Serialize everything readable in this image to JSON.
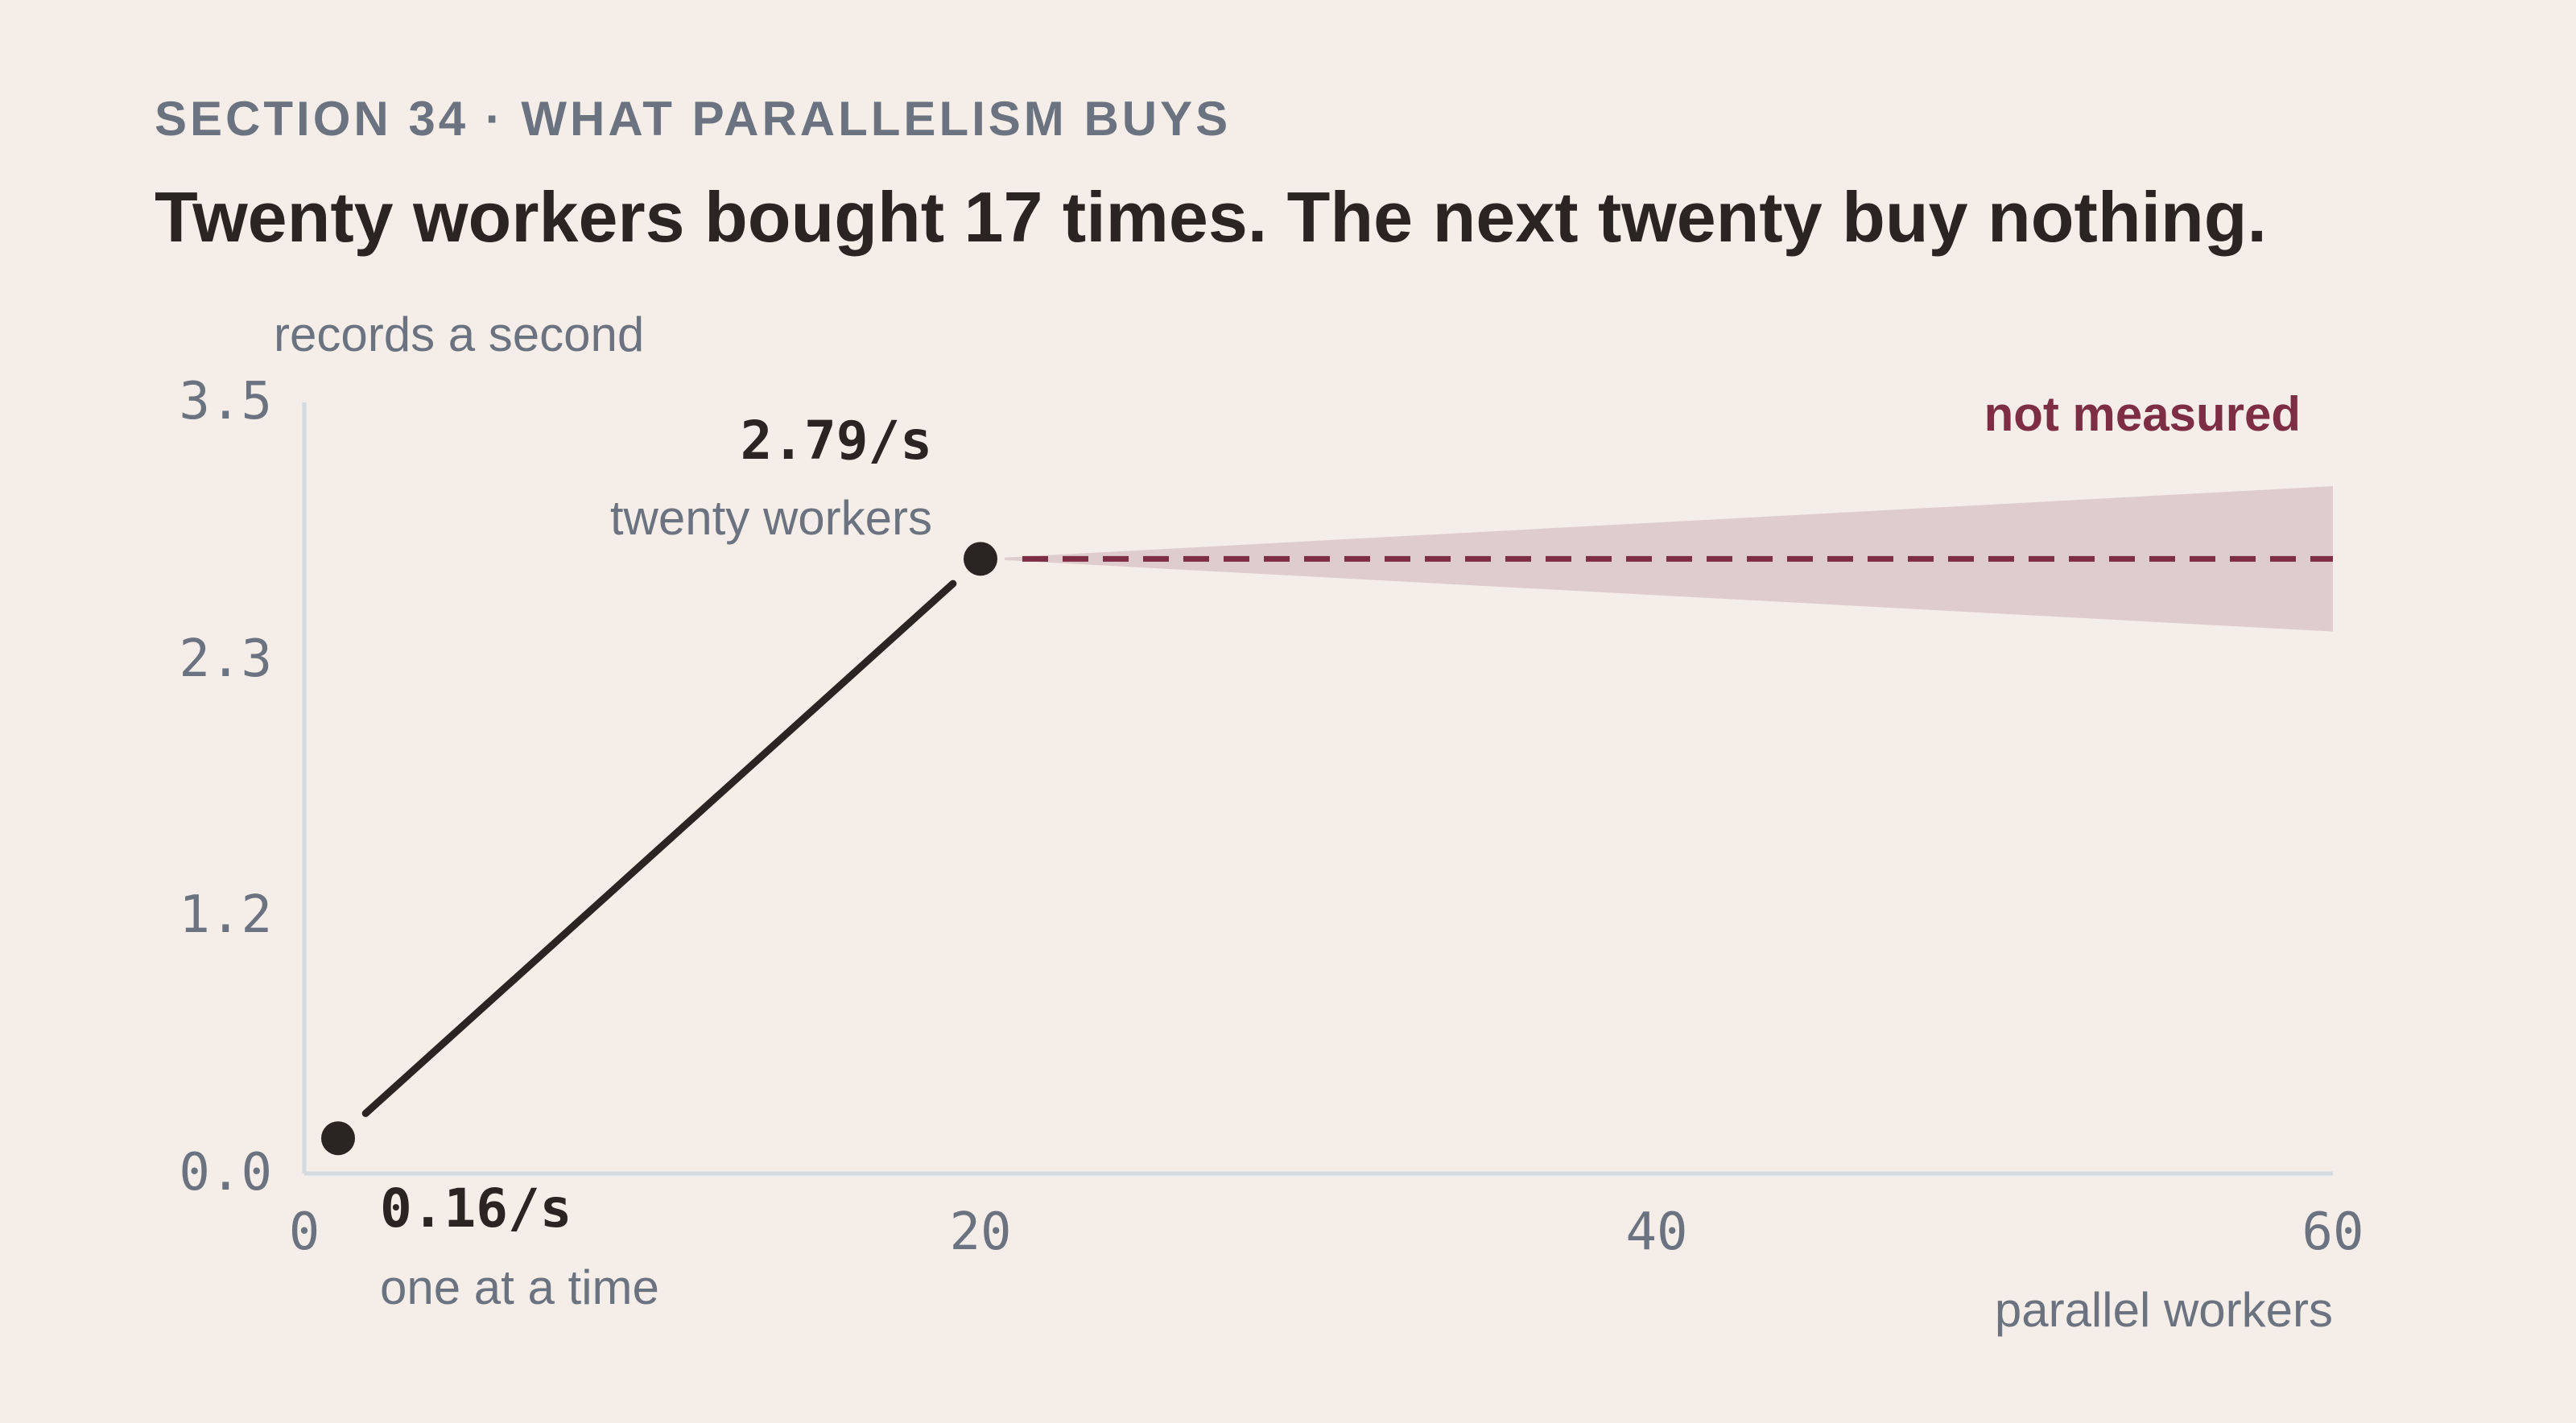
{
  "header": {
    "eyebrow": "SECTION 34 · WHAT PARALLELISM BUYS",
    "headline": "Twenty workers bought 17 times. The next twenty buy nothing."
  },
  "chart_data": {
    "type": "line",
    "ylabel": "records a second",
    "xlabel": "parallel workers",
    "xlim": [
      0,
      60
    ],
    "ylim": [
      0,
      3.5
    ],
    "x_ticks": [
      0,
      20,
      40,
      60
    ],
    "x_tick_labels": [
      "0",
      "20",
      "40",
      "60"
    ],
    "y_ticks": [
      0,
      1.17,
      2.33,
      3.5
    ],
    "y_tick_labels": [
      "0.0",
      "1.2",
      "2.3",
      "3.5"
    ],
    "grid": false,
    "series": [
      {
        "kind": "measured",
        "points": [
          {
            "x": 1,
            "y": 0.16,
            "value_label": "0.16/s",
            "caption": "one at a time"
          },
          {
            "x": 20,
            "y": 2.79,
            "value_label": "2.79/s",
            "caption": "twenty workers"
          }
        ]
      },
      {
        "kind": "projection",
        "label": "not measured",
        "x": [
          20,
          60
        ],
        "y": [
          2.79,
          2.79
        ],
        "band_low": [
          2.79,
          2.46
        ],
        "band_high": [
          2.79,
          3.12
        ]
      }
    ],
    "colors": {
      "measured": "#2a2522",
      "projection": "#7d2e45",
      "band": "#dfcdcd",
      "axis": "#d3dbe0",
      "tick_text": "#6b7280",
      "label_text": "#6b7280",
      "value_text": "#2a2522"
    }
  }
}
